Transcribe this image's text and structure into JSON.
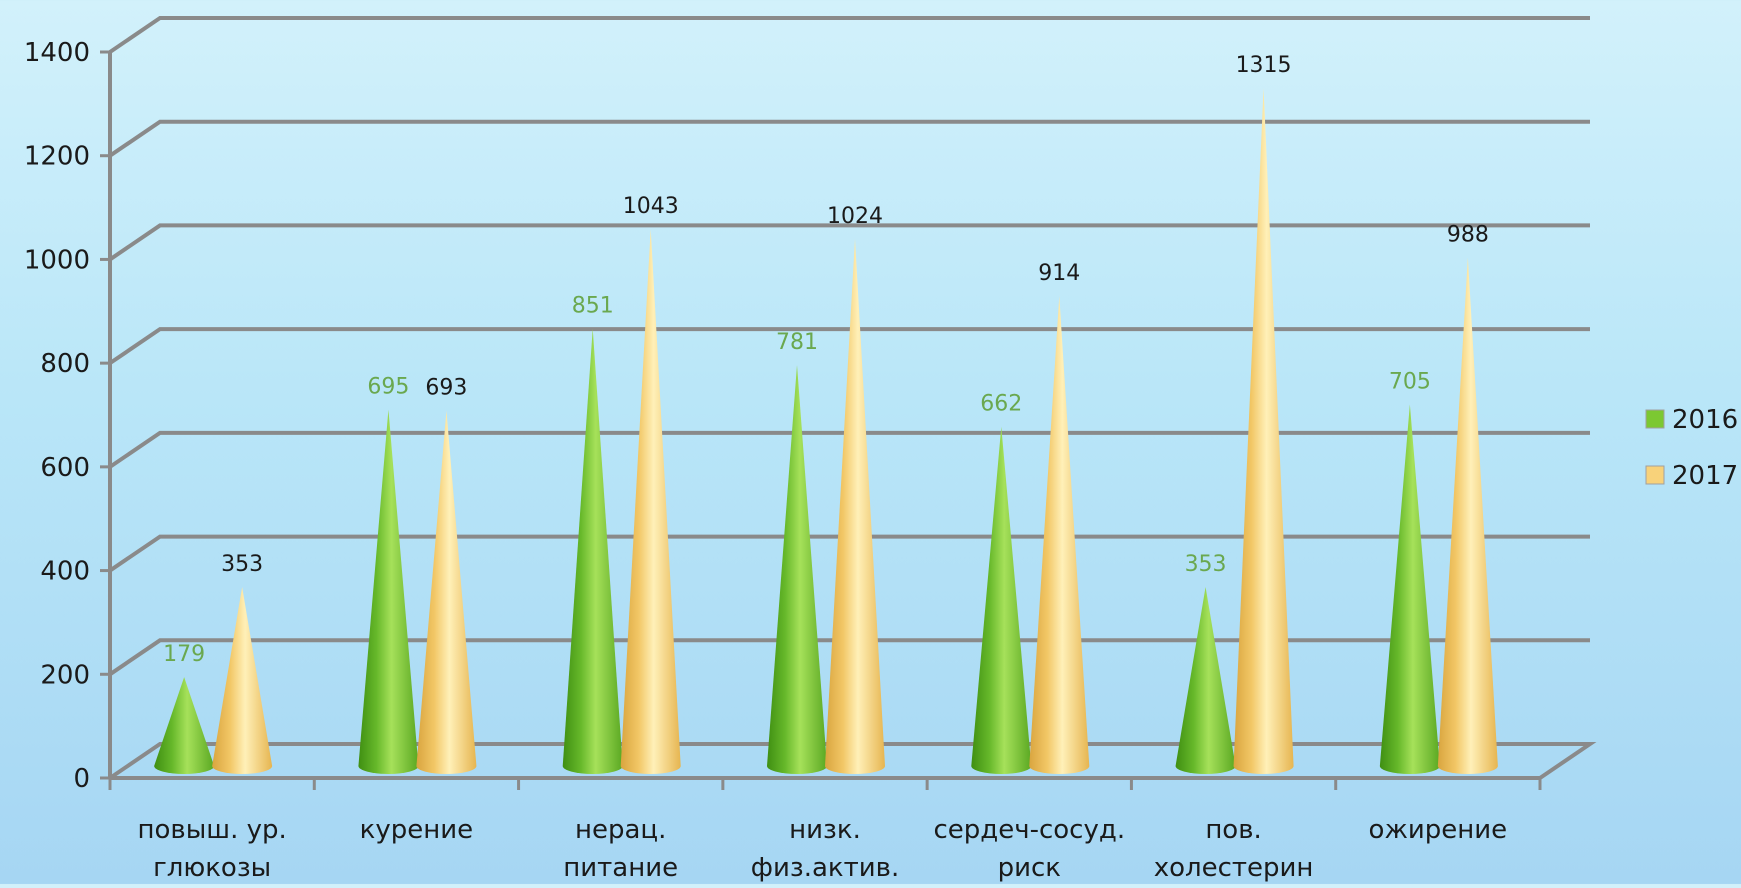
{
  "chart_data": {
    "type": "bar",
    "style": "3d-cone",
    "categories": [
      [
        "повыш. ур.",
        "глюкозы"
      ],
      [
        "курение"
      ],
      [
        "нерац.",
        "питание"
      ],
      [
        "низк.",
        "физ.актив."
      ],
      [
        "сердеч-сосуд.",
        "риск"
      ],
      [
        "пов.",
        "холестерин"
      ],
      [
        "ожирение"
      ]
    ],
    "series": [
      {
        "name": "2016",
        "values": [
          179,
          695,
          851,
          781,
          662,
          353,
          705
        ],
        "color": "#7cc832",
        "label_color": "#6aa84f"
      },
      {
        "name": "2017",
        "values": [
          353,
          693,
          1043,
          1024,
          914,
          1315,
          988
        ],
        "color": "#f8d27a",
        "label_color": "#1a1a1a"
      }
    ],
    "ylim": [
      0,
      1400
    ],
    "yticks": [
      0,
      200,
      400,
      600,
      800,
      1000,
      1200,
      1400
    ],
    "grid": true,
    "legend_position": "right"
  }
}
